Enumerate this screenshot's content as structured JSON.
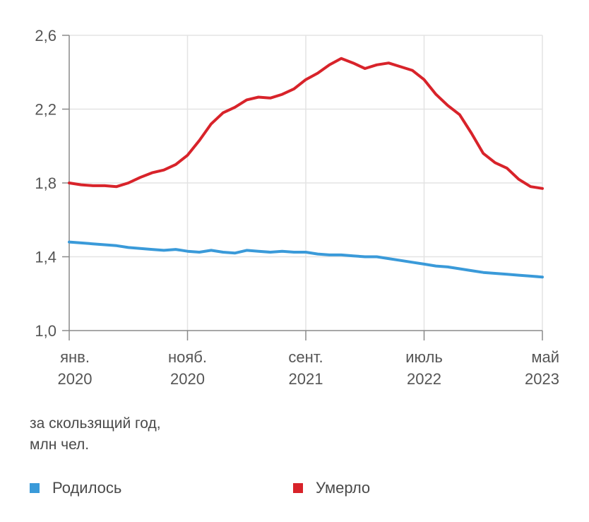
{
  "chart_data": {
    "type": "line",
    "title": "",
    "xlabel": "",
    "ylabel": "",
    "unit_note": [
      "за скользящий год,",
      "млн чел."
    ],
    "ylim": [
      1.0,
      2.6
    ],
    "yticks": [
      {
        "value": 1.0,
        "label": "1,0"
      },
      {
        "value": 1.4,
        "label": "1,4"
      },
      {
        "value": 1.8,
        "label": "1,8"
      },
      {
        "value": 2.2,
        "label": "2,2"
      },
      {
        "value": 2.6,
        "label": "2,6"
      }
    ],
    "xlim": [
      0,
      40
    ],
    "xticks": [
      {
        "index": 0,
        "line1": "янв.",
        "line2": "2020"
      },
      {
        "index": 10,
        "line1": "нояб.",
        "line2": "2020"
      },
      {
        "index": 20,
        "line1": "сент.",
        "line2": "2021"
      },
      {
        "index": 30,
        "line1": "июль",
        "line2": "2022"
      },
      {
        "index": 40,
        "line1": "май",
        "line2": "2023"
      }
    ],
    "grid": true,
    "legend_position": "bottom",
    "series": [
      {
        "name": "Родилось",
        "color": "#3a9ad9",
        "values": [
          1.48,
          1.475,
          1.47,
          1.465,
          1.46,
          1.45,
          1.445,
          1.44,
          1.435,
          1.44,
          1.43,
          1.425,
          1.435,
          1.425,
          1.42,
          1.435,
          1.43,
          1.425,
          1.43,
          1.425,
          1.425,
          1.415,
          1.41,
          1.41,
          1.405,
          1.4,
          1.4,
          1.39,
          1.38,
          1.37,
          1.36,
          1.35,
          1.345,
          1.335,
          1.325,
          1.315,
          1.31,
          1.305,
          1.3,
          1.295,
          1.29
        ]
      },
      {
        "name": "Умерло",
        "color": "#d8232a",
        "values": [
          1.8,
          1.79,
          1.785,
          1.785,
          1.78,
          1.8,
          1.83,
          1.855,
          1.87,
          1.9,
          1.95,
          2.03,
          2.12,
          2.18,
          2.21,
          2.25,
          2.265,
          2.26,
          2.28,
          2.31,
          2.36,
          2.395,
          2.44,
          2.475,
          2.45,
          2.42,
          2.44,
          2.45,
          2.43,
          2.41,
          2.36,
          2.28,
          2.22,
          2.17,
          2.07,
          1.96,
          1.91,
          1.88,
          1.82,
          1.78,
          1.77
        ]
      }
    ]
  }
}
